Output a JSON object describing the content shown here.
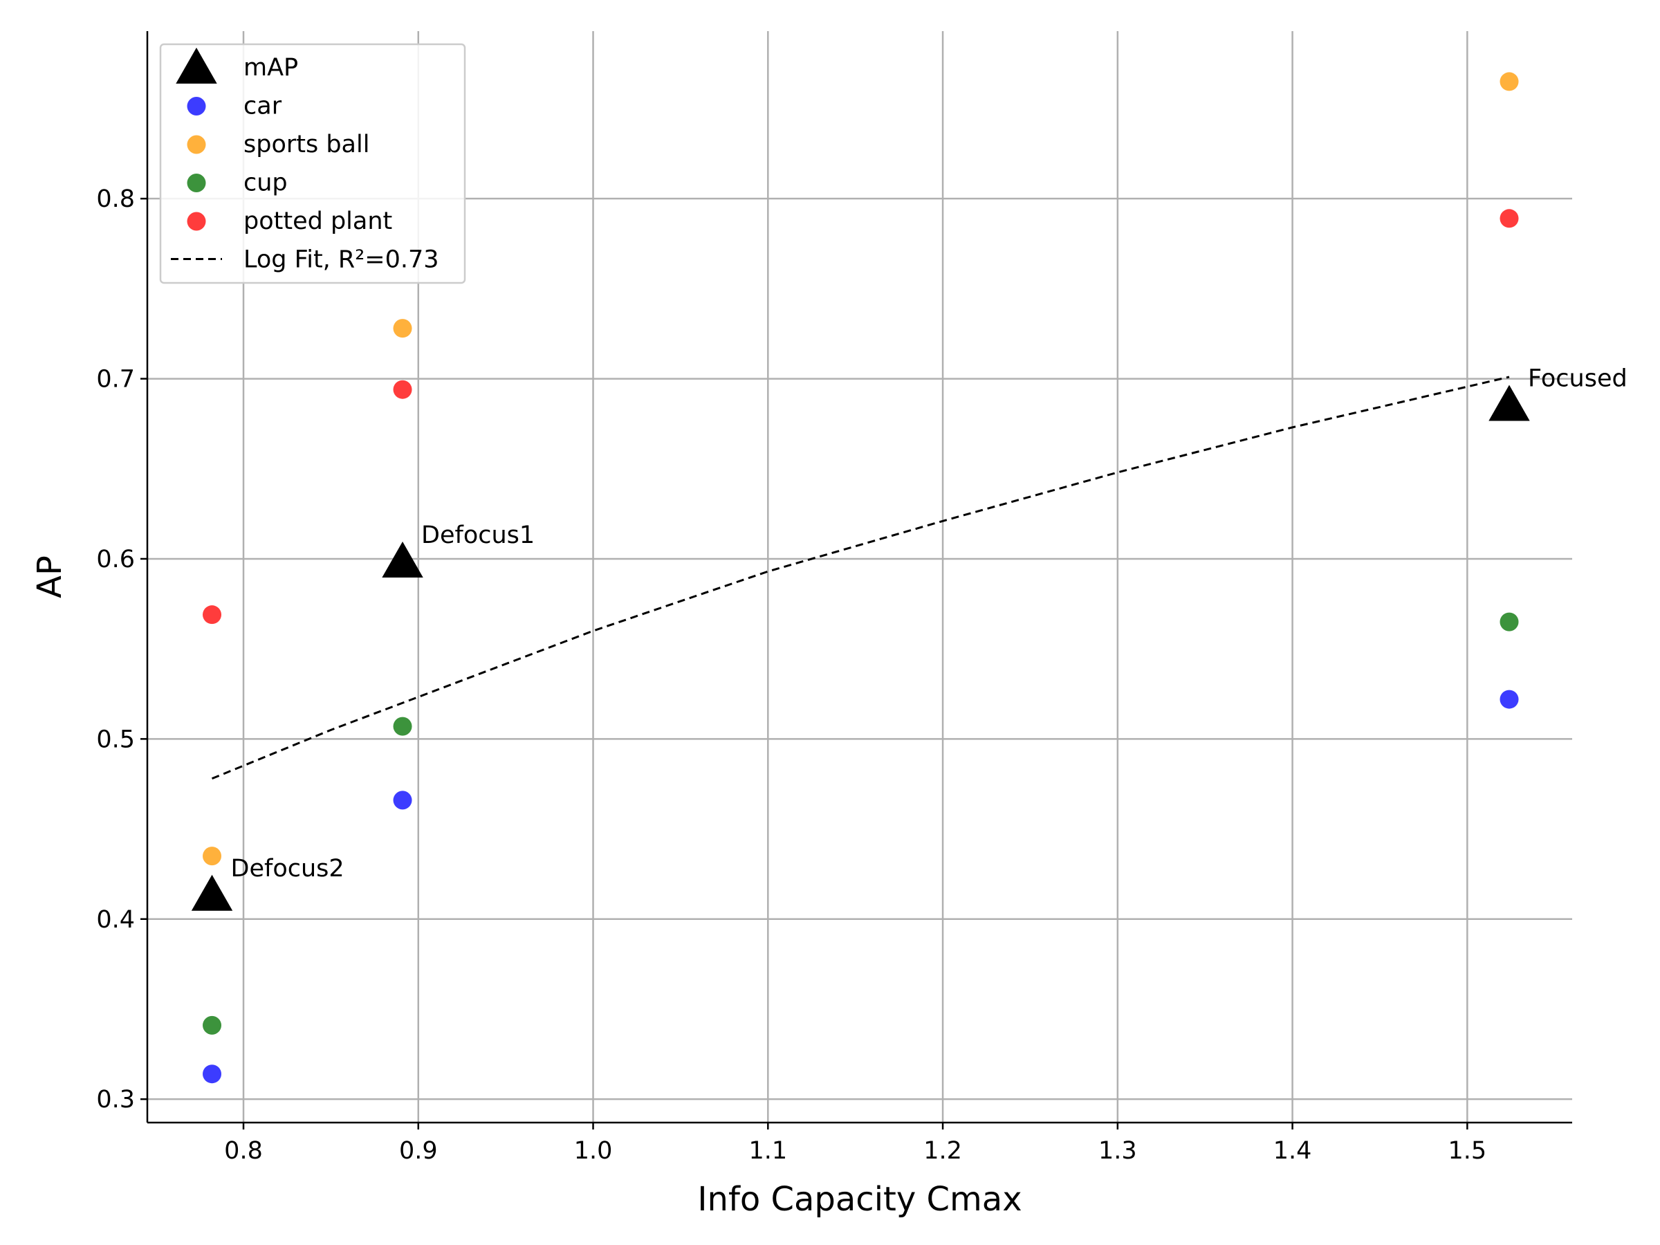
{
  "chart_data": {
    "type": "scatter",
    "title": "",
    "xlabel": "Info Capacity Cmax",
    "ylabel": "AP",
    "xlim": [
      0.745,
      1.56
    ],
    "ylim": [
      0.287,
      0.893
    ],
    "x_ticks": [
      0.8,
      0.9,
      1.0,
      1.1,
      1.2,
      1.3,
      1.4,
      1.5
    ],
    "x_tick_labels": [
      "0.8",
      "0.9",
      "1.0",
      "1.1",
      "1.2",
      "1.3",
      "1.4",
      "1.5"
    ],
    "y_ticks": [
      0.3,
      0.4,
      0.5,
      0.6,
      0.7,
      0.8
    ],
    "y_tick_labels": [
      "0.3",
      "0.4",
      "0.5",
      "0.6",
      "0.7",
      "0.8"
    ],
    "grid": true,
    "legend_position": "top-left",
    "series": [
      {
        "name": "mAP",
        "marker": "triangle",
        "color": "#000000",
        "x": [
          0.782,
          0.891,
          1.524
        ],
        "y": [
          0.413,
          0.598,
          0.685
        ]
      },
      {
        "name": "car",
        "marker": "circle",
        "color": "#1a1aff",
        "x": [
          0.782,
          0.891,
          1.524
        ],
        "y": [
          0.314,
          0.466,
          0.522
        ]
      },
      {
        "name": "sports ball",
        "marker": "circle",
        "color": "#ffa31a",
        "x": [
          0.782,
          0.891,
          1.524
        ],
        "y": [
          0.435,
          0.728,
          0.865
        ]
      },
      {
        "name": "cup",
        "marker": "circle",
        "color": "#1a801a",
        "x": [
          0.782,
          0.891,
          1.524
        ],
        "y": [
          0.341,
          0.507,
          0.565
        ]
      },
      {
        "name": "potted plant",
        "marker": "circle",
        "color": "#ff1a1a",
        "x": [
          0.782,
          0.891,
          1.524
        ],
        "y": [
          0.569,
          0.694,
          0.789
        ]
      }
    ],
    "fit": {
      "name": "Log Fit, R²=0.73",
      "style": "dashed",
      "color": "#000000",
      "x": [
        0.782,
        0.85,
        0.891,
        1.0,
        1.1,
        1.2,
        1.3,
        1.4,
        1.524
      ],
      "y": [
        0.478,
        0.505,
        0.52,
        0.56,
        0.593,
        0.621,
        0.648,
        0.673,
        0.701
      ]
    },
    "annotations": [
      {
        "text": "Defocus2",
        "x": 0.782,
        "y": 0.413
      },
      {
        "text": "Defocus1",
        "x": 0.891,
        "y": 0.598
      },
      {
        "text": "Focused",
        "x": 1.524,
        "y": 0.685
      }
    ]
  }
}
